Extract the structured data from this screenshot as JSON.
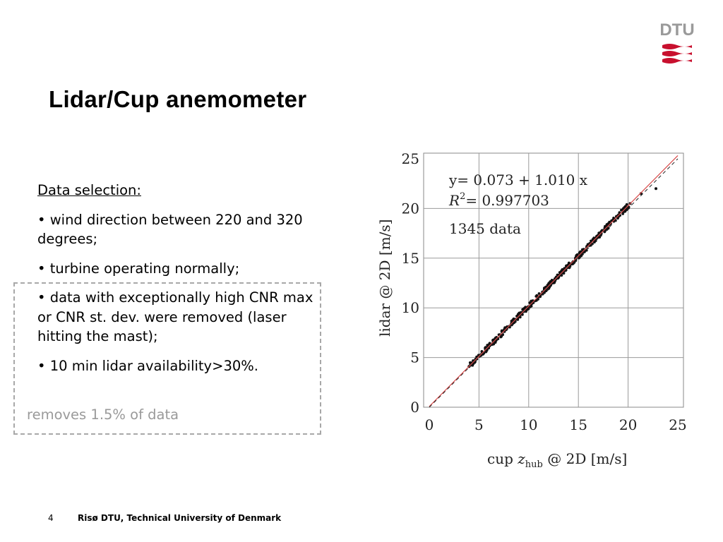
{
  "slide": {
    "title": "Lidar/Cup anemometer",
    "logo_text": "DTU",
    "section_heading": "Data selection:",
    "bullets": [
      "• wind direction between 220 and 320 degrees;",
      "• turbine operating normally;",
      "• data with exceptionally high CNR max or CNR st. dev. were removed (laser hitting the mast);",
      "• 10 min lidar availability>30%."
    ],
    "note": "removes 1.5% of data",
    "page_number": "4",
    "footer": "Risø DTU, Technical University of Denmark"
  },
  "colors": {
    "logo_red": "#c8102e",
    "logo_gray": "#9a9a9a",
    "fit_line": "#d84a4a"
  },
  "chart_data": {
    "type": "scatter",
    "title": "",
    "xlabel": "cup z_hub @ 2D [m/s]",
    "xlabel_parts": [
      "cup ",
      "z",
      "hub",
      " @ 2D [m/s]"
    ],
    "ylabel": "lidar @ 2D [m/s]",
    "xlim": [
      0,
      25
    ],
    "ylim": [
      0,
      25
    ],
    "xticks": [
      "0",
      "5",
      "10",
      "15",
      "20",
      "25"
    ],
    "yticks": [
      "0",
      "5",
      "10",
      "15",
      "20",
      "25"
    ],
    "grid": true,
    "annotations": [
      "y= 0.073 +  1.010 x",
      "R",
      "2",
      "= 0.997703",
      "1345 data"
    ],
    "fit": {
      "intercept": 0.073,
      "slope": 1.01,
      "r2": 0.997703
    },
    "n_points": 1345,
    "x_range_of_data": [
      4.0,
      22.8
    ],
    "series": [
      {
        "x": [
          4.0,
          4.6,
          5.2,
          5.9,
          6.5,
          7.1,
          7.8,
          8.4,
          9.0,
          9.7,
          10.3,
          10.9,
          11.6,
          12.2,
          12.8,
          13.5,
          14.1,
          14.7,
          15.4,
          16.0,
          16.6,
          17.3,
          17.9,
          18.5,
          19.0,
          19.5,
          20.2,
          21.3,
          22.8
        ],
        "y": [
          4.1,
          4.7,
          5.3,
          6.0,
          6.6,
          7.3,
          7.9,
          8.6,
          9.2,
          9.9,
          10.5,
          11.1,
          11.8,
          12.4,
          13.0,
          13.7,
          14.3,
          15.0,
          15.6,
          16.3,
          16.9,
          17.5,
          18.2,
          18.8,
          19.3,
          19.8,
          20.5,
          21.5,
          22.0
        ]
      }
    ]
  }
}
